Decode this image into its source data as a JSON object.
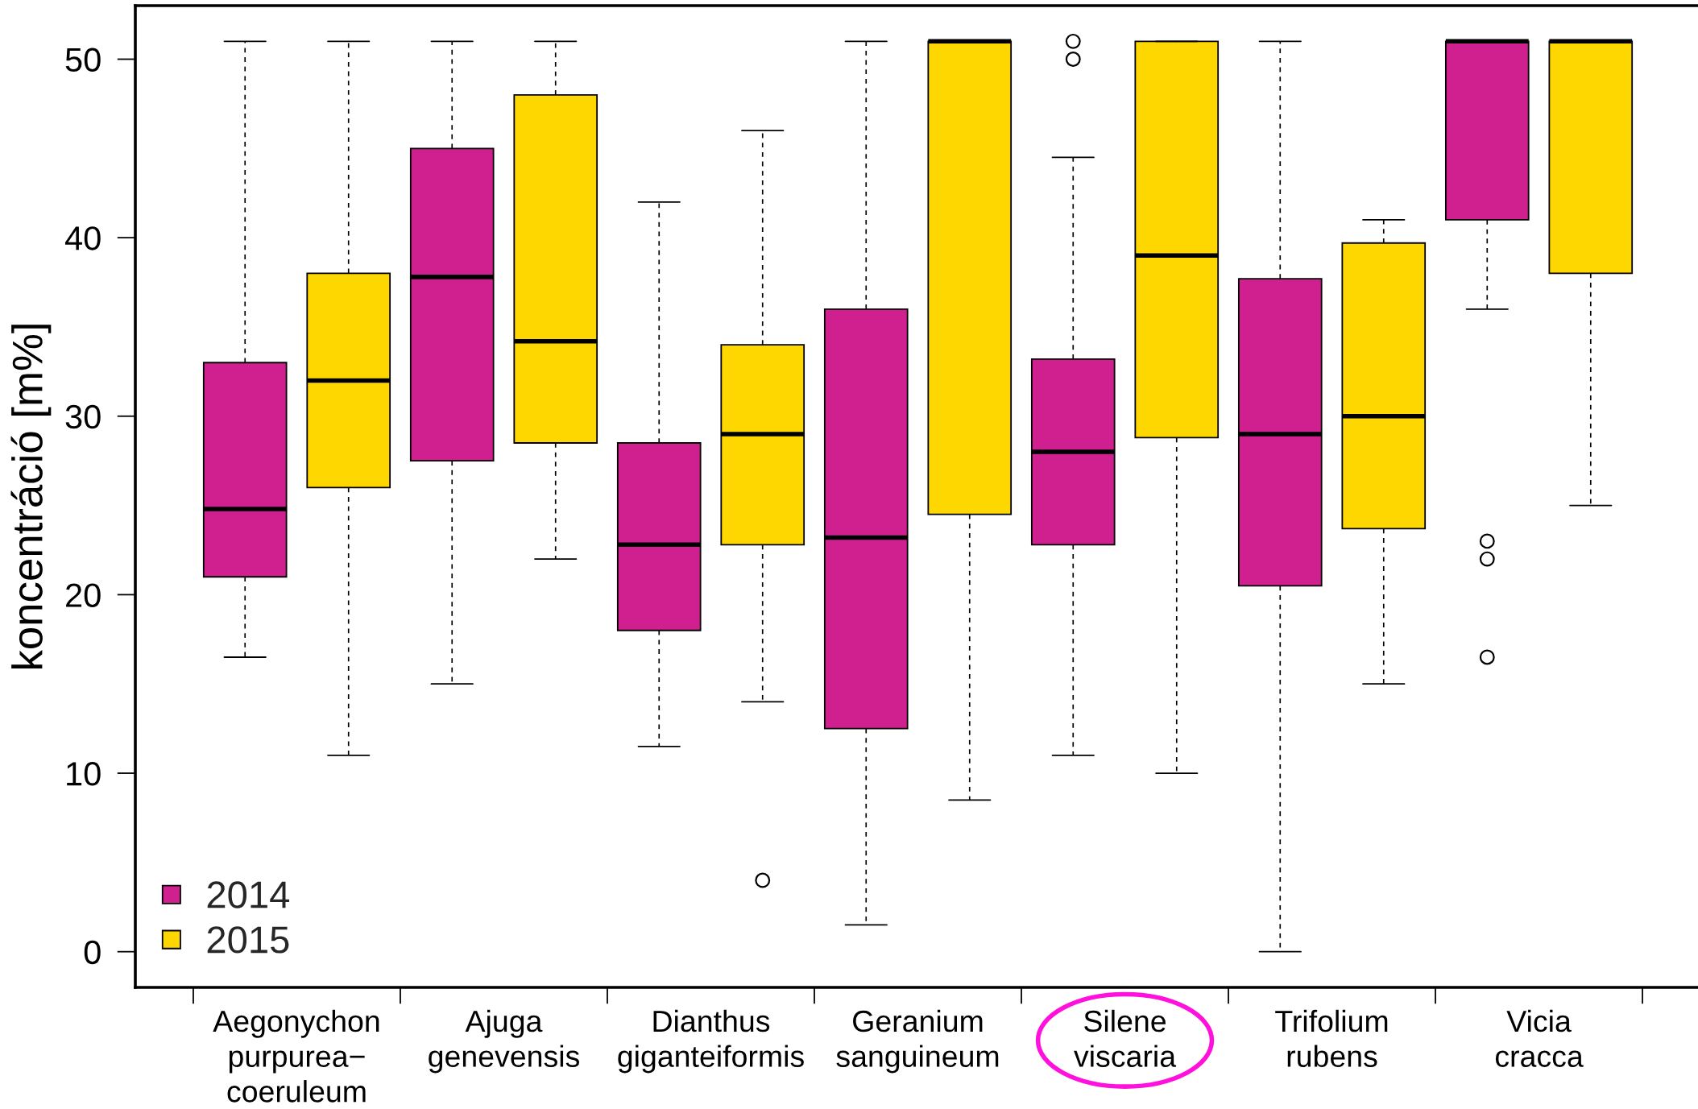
{
  "chart_data": {
    "type": "box",
    "ylabel": "koncentráció [m%]",
    "categories": [
      "Aegonychon\npurpurea−\ncoeruleum",
      "Ajuga\ngenevensis",
      "Dianthus\ngiganteiformis",
      "Geranium\nsanguineum",
      "Silene\nviscaria",
      "Trifolium\nrubens",
      "Vicia\ncracca"
    ],
    "series": [
      {
        "name": "2014",
        "color": "#d02090",
        "boxes": [
          {
            "low": 16.5,
            "q1": 21,
            "median": 24.8,
            "q3": 33,
            "high": 51
          },
          {
            "low": 15,
            "q1": 27.5,
            "median": 37.8,
            "q3": 45,
            "high": 51
          },
          {
            "low": 11.5,
            "q1": 18,
            "median": 22.8,
            "q3": 28.5,
            "high": 42
          },
          {
            "low": 1.5,
            "q1": 12.5,
            "median": 23.2,
            "q3": 36,
            "high": 51
          },
          {
            "low": 11,
            "q1": 22.8,
            "median": 28,
            "q3": 33.2,
            "high": 44.5,
            "outliers": [
              51,
              50
            ]
          },
          {
            "low": 0,
            "q1": 20.5,
            "median": 29,
            "q3": 37.7,
            "high": 51
          },
          {
            "low": 36,
            "q1": 41,
            "median": 51,
            "q3": 51,
            "high": 51,
            "outliers": [
              23,
              22,
              16.5
            ]
          }
        ]
      },
      {
        "name": "2015",
        "color": "#ffd700",
        "boxes": [
          {
            "low": 11,
            "q1": 26,
            "median": 32,
            "q3": 38,
            "high": 51
          },
          {
            "low": 22,
            "q1": 28.5,
            "median": 34.2,
            "q3": 48,
            "high": 51
          },
          {
            "low": 14,
            "q1": 22.8,
            "median": 29,
            "q3": 34,
            "high": 46,
            "outliers": [
              4
            ]
          },
          {
            "low": 8.5,
            "q1": 24.5,
            "median": 51,
            "q3": 51,
            "high": 51
          },
          {
            "low": 10,
            "q1": 28.8,
            "median": 39,
            "q3": 51,
            "high": 51
          },
          {
            "low": 15,
            "q1": 23.7,
            "median": 30,
            "q3": 39.7,
            "high": 41
          },
          {
            "low": 25,
            "q1": 38,
            "median": 51,
            "q3": 51,
            "high": 51
          }
        ]
      }
    ],
    "ylim": [
      -2,
      53
    ],
    "yticks": [
      0,
      10,
      20,
      30,
      40,
      50
    ],
    "legend": "bottom left",
    "grid": false
  }
}
